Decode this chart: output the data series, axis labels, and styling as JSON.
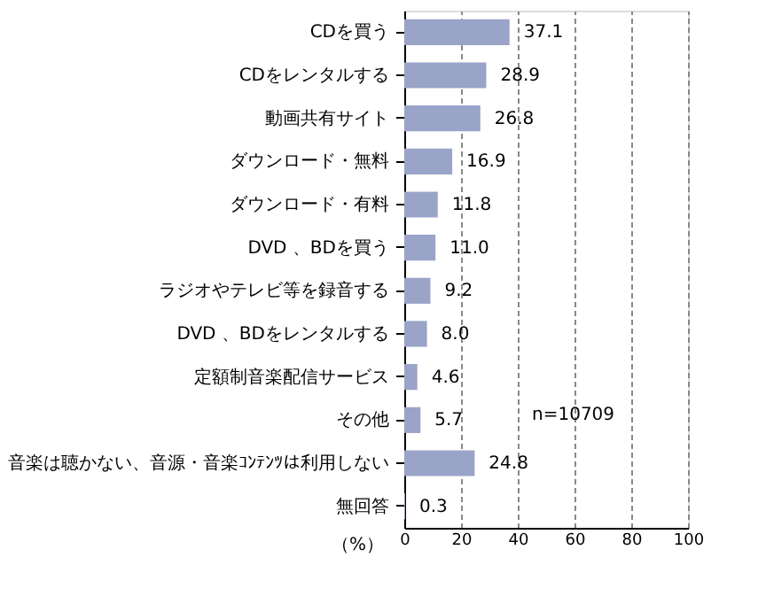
{
  "chart_data": {
    "type": "bar",
    "orientation": "horizontal",
    "categories": [
      "CDを買う",
      "CDをレンタルする",
      "動画共有サイト",
      "ダウンロード・無料",
      "ダウンロード・有料",
      "DVD 、BDを買う",
      "ラジオやテレビ等を録音する",
      "DVD 、BDをレンタルする",
      "定額制音楽配信サービス",
      "その他",
      "音楽は聴かない、音源・音楽ｺﾝﾃﾝﾂは利用しない",
      "無回答"
    ],
    "values": [
      37.1,
      28.9,
      26.8,
      16.9,
      11.8,
      11.0,
      9.2,
      8.0,
      4.6,
      5.7,
      24.8,
      0.3
    ],
    "value_labels": [
      "37.1",
      "28.9",
      "26.8",
      "16.9",
      "11.8",
      "11.0",
      "9.2",
      "8.0",
      "4.6",
      "5.7",
      "24.8",
      "0.3"
    ],
    "color": "#9aa3c8",
    "xlim": [
      0,
      100
    ],
    "xticks": [
      0,
      20,
      40,
      60,
      80,
      100
    ],
    "xlabel": "（%）",
    "grid": "x",
    "annotations": [
      "n=10709"
    ]
  }
}
